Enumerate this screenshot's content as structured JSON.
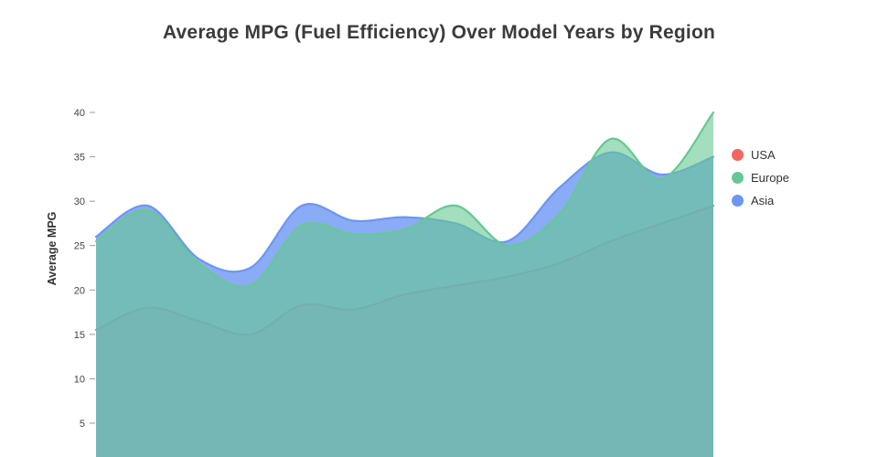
{
  "chart_data": {
    "type": "area",
    "title": "Average MPG (Fuel Efficiency) Over Model Years by Region",
    "xlabel": "",
    "ylabel": "Average MPG",
    "x_axis_labels_visible": false,
    "grid": false,
    "legend_position": "right",
    "yticks": [
      5,
      10,
      15,
      20,
      25,
      30,
      35,
      40
    ],
    "ylim_shown": [
      5,
      40
    ],
    "x": [
      0,
      1,
      2,
      3,
      4,
      5,
      6,
      7,
      8,
      9,
      10,
      11,
      12
    ],
    "series": [
      {
        "name": "USA",
        "color": "#f2665e",
        "values": [
          15.5,
          18,
          16.5,
          15,
          18.3,
          17.8,
          19.5,
          20.5,
          21.5,
          23,
          25.5,
          27.5,
          29.5
        ]
      },
      {
        "name": "Europe",
        "color": "#66c893",
        "values": [
          25.5,
          29,
          23,
          20.5,
          27.3,
          26.3,
          26.8,
          29.5,
          25,
          28.5,
          37,
          32.5,
          40
        ]
      },
      {
        "name": "Asia",
        "color": "#6d96f2",
        "values": [
          26,
          29.5,
          23.5,
          22.5,
          29.5,
          27.8,
          28.2,
          27.5,
          25.5,
          31.5,
          35.5,
          33,
          35
        ]
      }
    ]
  }
}
